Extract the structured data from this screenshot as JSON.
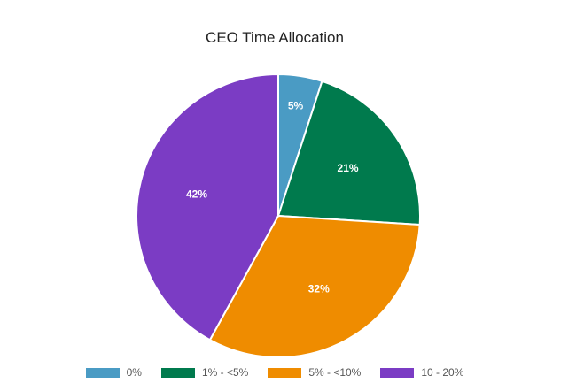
{
  "chart_data": {
    "type": "pie",
    "title": "CEO Time Allocation",
    "categories": [
      "0%",
      "1% - <5%",
      "5% - <10%",
      "10 - 20%"
    ],
    "values": [
      5,
      21,
      32,
      42
    ],
    "labels": [
      "5%",
      "21%",
      "32%",
      "42%"
    ],
    "colors": [
      "#4a9bc4",
      "#007a4d",
      "#ef8c00",
      "#7b3cc4"
    ],
    "legend_position": "bottom"
  }
}
